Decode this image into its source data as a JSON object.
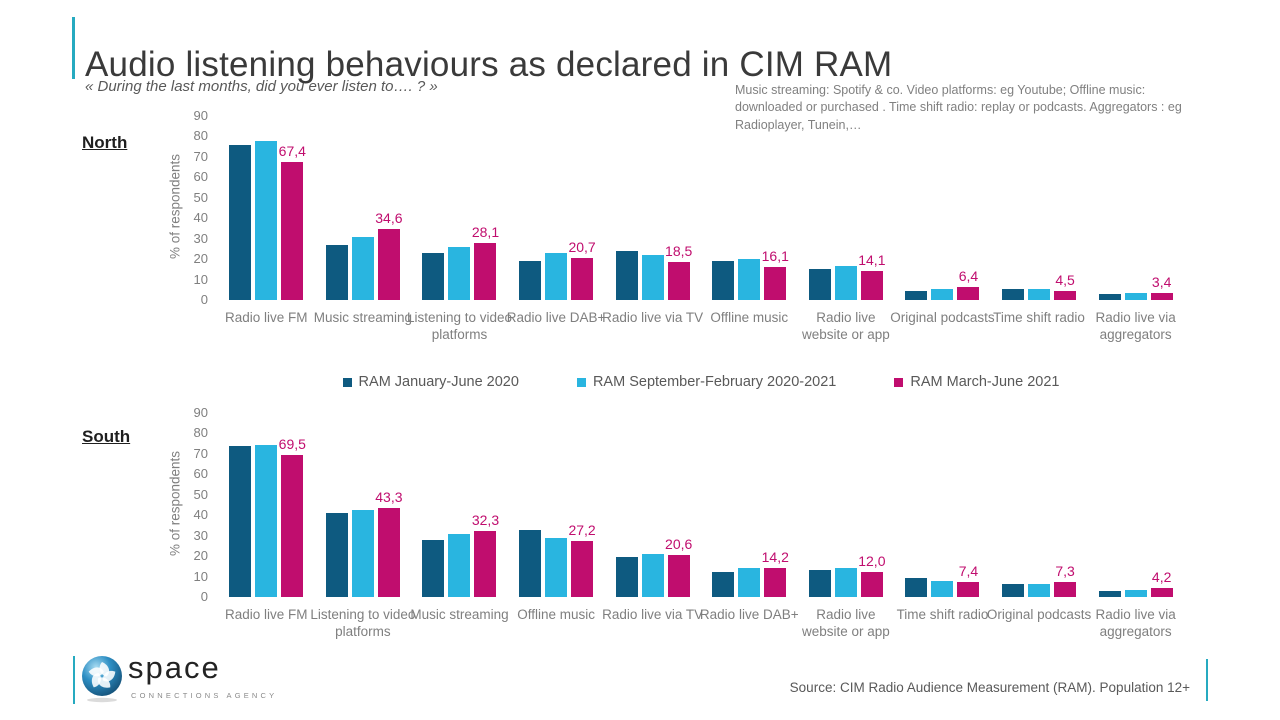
{
  "page": {
    "title": "Audio listening behaviours as declared in CIM RAM",
    "subtitle": "« During the last months, did you ever listen to…. ? »",
    "note": "Music streaming: Spotify & co. Video platforms: eg Youtube; Offline music: downloaded or purchased . Time shift radio: replay or podcasts. Aggregators : eg Radioplayer, Tunein,…",
    "source": "Source: CIM Radio Audience Measurement (RAM). Population 12+",
    "logo": {
      "name": "space",
      "tagline": "CONNECTIONS AGENCY"
    }
  },
  "colors": {
    "accent_teal": "#26aac0",
    "series_dark_blue": "#0e5a80",
    "series_light_blue": "#29b5e0",
    "series_magenta": "#c00d6e",
    "text_gray": "#7f7f7f"
  },
  "legend": [
    {
      "label": "RAM January-June 2020",
      "color": "#0e5a80"
    },
    {
      "label": "RAM September-February 2020-2021",
      "color": "#29b5e0"
    },
    {
      "label": "RAM March-June 2021",
      "color": "#c00d6e"
    }
  ],
  "chart_data": [
    {
      "type": "bar",
      "region": "North",
      "ylabel": "% of respondents",
      "ylim": [
        0,
        90
      ],
      "yticks": [
        0,
        10,
        20,
        30,
        40,
        50,
        60,
        70,
        80,
        90
      ],
      "grid": false,
      "legend_position": "below",
      "categories": [
        "Radio live FM",
        "Music streaming",
        "Listening to video platforms",
        "Radio live DAB+",
        "Radio live via TV",
        "Offline music",
        "Radio live website or app",
        "Original podcasts",
        "Time shift radio",
        "Radio live via aggregators"
      ],
      "series": [
        {
          "name": "RAM January-June 2020",
          "color": "#0e5a80",
          "values": [
            76,
            27,
            23,
            19,
            24,
            19,
            15,
            4.5,
            5.5,
            3
          ]
        },
        {
          "name": "RAM September-February 2020-2021",
          "color": "#29b5e0",
          "values": [
            78,
            31,
            26,
            23,
            22,
            20,
            16.5,
            5.5,
            5.5,
            3.2
          ]
        },
        {
          "name": "RAM March-June 2021",
          "color": "#c00d6e",
          "values": [
            67.4,
            34.6,
            28.1,
            20.7,
            18.5,
            16.1,
            14.1,
            6.4,
            4.5,
            3.4
          ],
          "labels": [
            "67,4",
            "34,6",
            "28,1",
            "20,7",
            "18,5",
            "16,1",
            "14,1",
            "6,4",
            "4,5",
            "3,4"
          ]
        }
      ]
    },
    {
      "type": "bar",
      "region": "South",
      "ylabel": "% of respondents",
      "ylim": [
        0,
        90
      ],
      "yticks": [
        0,
        10,
        20,
        30,
        40,
        50,
        60,
        70,
        80,
        90
      ],
      "grid": false,
      "legend_position": "above",
      "categories": [
        "Radio live FM",
        "Listening to video platforms",
        "Music streaming",
        "Offline music",
        "Radio live via TV",
        "Radio live DAB+",
        "Radio live website or app",
        "Time shift radio",
        "Original podcasts",
        "Radio live via aggregators"
      ],
      "series": [
        {
          "name": "RAM January-June 2020",
          "color": "#0e5a80",
          "values": [
            74,
            41,
            28,
            33,
            19.5,
            12,
            13,
            9.5,
            6.5,
            3
          ]
        },
        {
          "name": "RAM September-February 2020-2021",
          "color": "#29b5e0",
          "values": [
            74.5,
            42.5,
            31,
            29,
            21,
            14,
            14,
            8,
            6.5,
            3.2
          ]
        },
        {
          "name": "RAM March-June 2021",
          "color": "#c00d6e",
          "values": [
            69.5,
            43.3,
            32.3,
            27.2,
            20.6,
            14.2,
            12.0,
            7.4,
            7.3,
            4.2
          ],
          "labels": [
            "69,5",
            "43,3",
            "32,3",
            "27,2",
            "20,6",
            "14,2",
            "12,0",
            "7,4",
            "7,3",
            "4,2"
          ]
        }
      ]
    }
  ]
}
